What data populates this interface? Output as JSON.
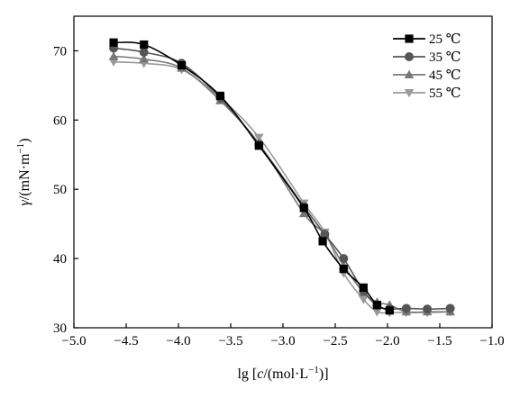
{
  "chart_data": {
    "type": "line",
    "xlabel_parts": {
      "pre": "lg [",
      "italic": "c",
      "mid": "/(mol·L",
      "sup": "−1",
      "post": ")]"
    },
    "ylabel_parts": {
      "italic": "γ",
      "mid": "/(mN·m",
      "sup": "−1",
      "post": ")"
    },
    "xlim": [
      -5.0,
      -1.0
    ],
    "ylim": [
      30,
      75
    ],
    "xticks": [
      -5.0,
      -4.5,
      -4.0,
      -3.5,
      -3.0,
      -2.5,
      -2.0,
      -1.5,
      -1.0
    ],
    "xtick_labels": [
      "−5.0",
      "−4.5",
      "−4.0",
      "−3.5",
      "−3.0",
      "−2.5",
      "−2.0",
      "−1.5",
      "−1.0"
    ],
    "yticks": [
      30,
      40,
      50,
      60,
      70
    ],
    "ytick_labels": [
      "30",
      "40",
      "50",
      "60",
      "70"
    ],
    "grid": false,
    "legend_position": "top-right",
    "series": [
      {
        "name": "25 ℃",
        "marker": "square",
        "color": "#000000",
        "x": [
          -4.62,
          -4.33,
          -3.97,
          -3.6,
          -3.23,
          -2.8,
          -2.62,
          -2.42,
          -2.23,
          -2.1,
          -1.98
        ],
        "y": [
          71.2,
          70.9,
          67.9,
          63.5,
          56.3,
          47.3,
          42.5,
          38.5,
          35.8,
          33.3,
          32.5
        ]
      },
      {
        "name": "35 ℃",
        "marker": "circle",
        "color": "#555555",
        "x": [
          -4.62,
          -4.33,
          -3.97,
          -3.6,
          -3.23,
          -2.8,
          -2.6,
          -2.42,
          -2.23,
          -2.1,
          -1.98,
          -1.82,
          -1.62,
          -1.4
        ],
        "y": [
          70.4,
          69.8,
          68.2,
          63.2,
          56.5,
          47.5,
          43.5,
          40.0,
          35.3,
          33.2,
          32.7,
          32.8,
          32.7,
          32.8
        ]
      },
      {
        "name": "45 ℃",
        "marker": "triangle-up",
        "color": "#777777",
        "x": [
          -4.62,
          -4.33,
          -3.97,
          -3.6,
          -3.23,
          -2.8,
          -2.6,
          -2.42,
          -2.23,
          -2.1,
          -1.98,
          -1.82,
          -1.62,
          -1.4
        ],
        "y": [
          69.2,
          68.8,
          67.5,
          62.8,
          56.6,
          46.5,
          43.5,
          39.0,
          35.1,
          33.7,
          33.3,
          32.3,
          32.3,
          32.3
        ]
      },
      {
        "name": "55 ℃",
        "marker": "triangle-down",
        "color": "#999999",
        "x": [
          -4.62,
          -4.33,
          -3.97,
          -3.6,
          -3.23,
          -2.8,
          -2.6,
          -2.42,
          -2.23,
          -2.1,
          -1.98,
          -1.82,
          -1.62,
          -1.4
        ],
        "y": [
          68.4,
          68.2,
          67.3,
          63.2,
          57.5,
          48.0,
          43.8,
          37.9,
          34.1,
          32.3,
          32.2,
          32.2,
          32.2,
          32.3
        ]
      }
    ]
  }
}
